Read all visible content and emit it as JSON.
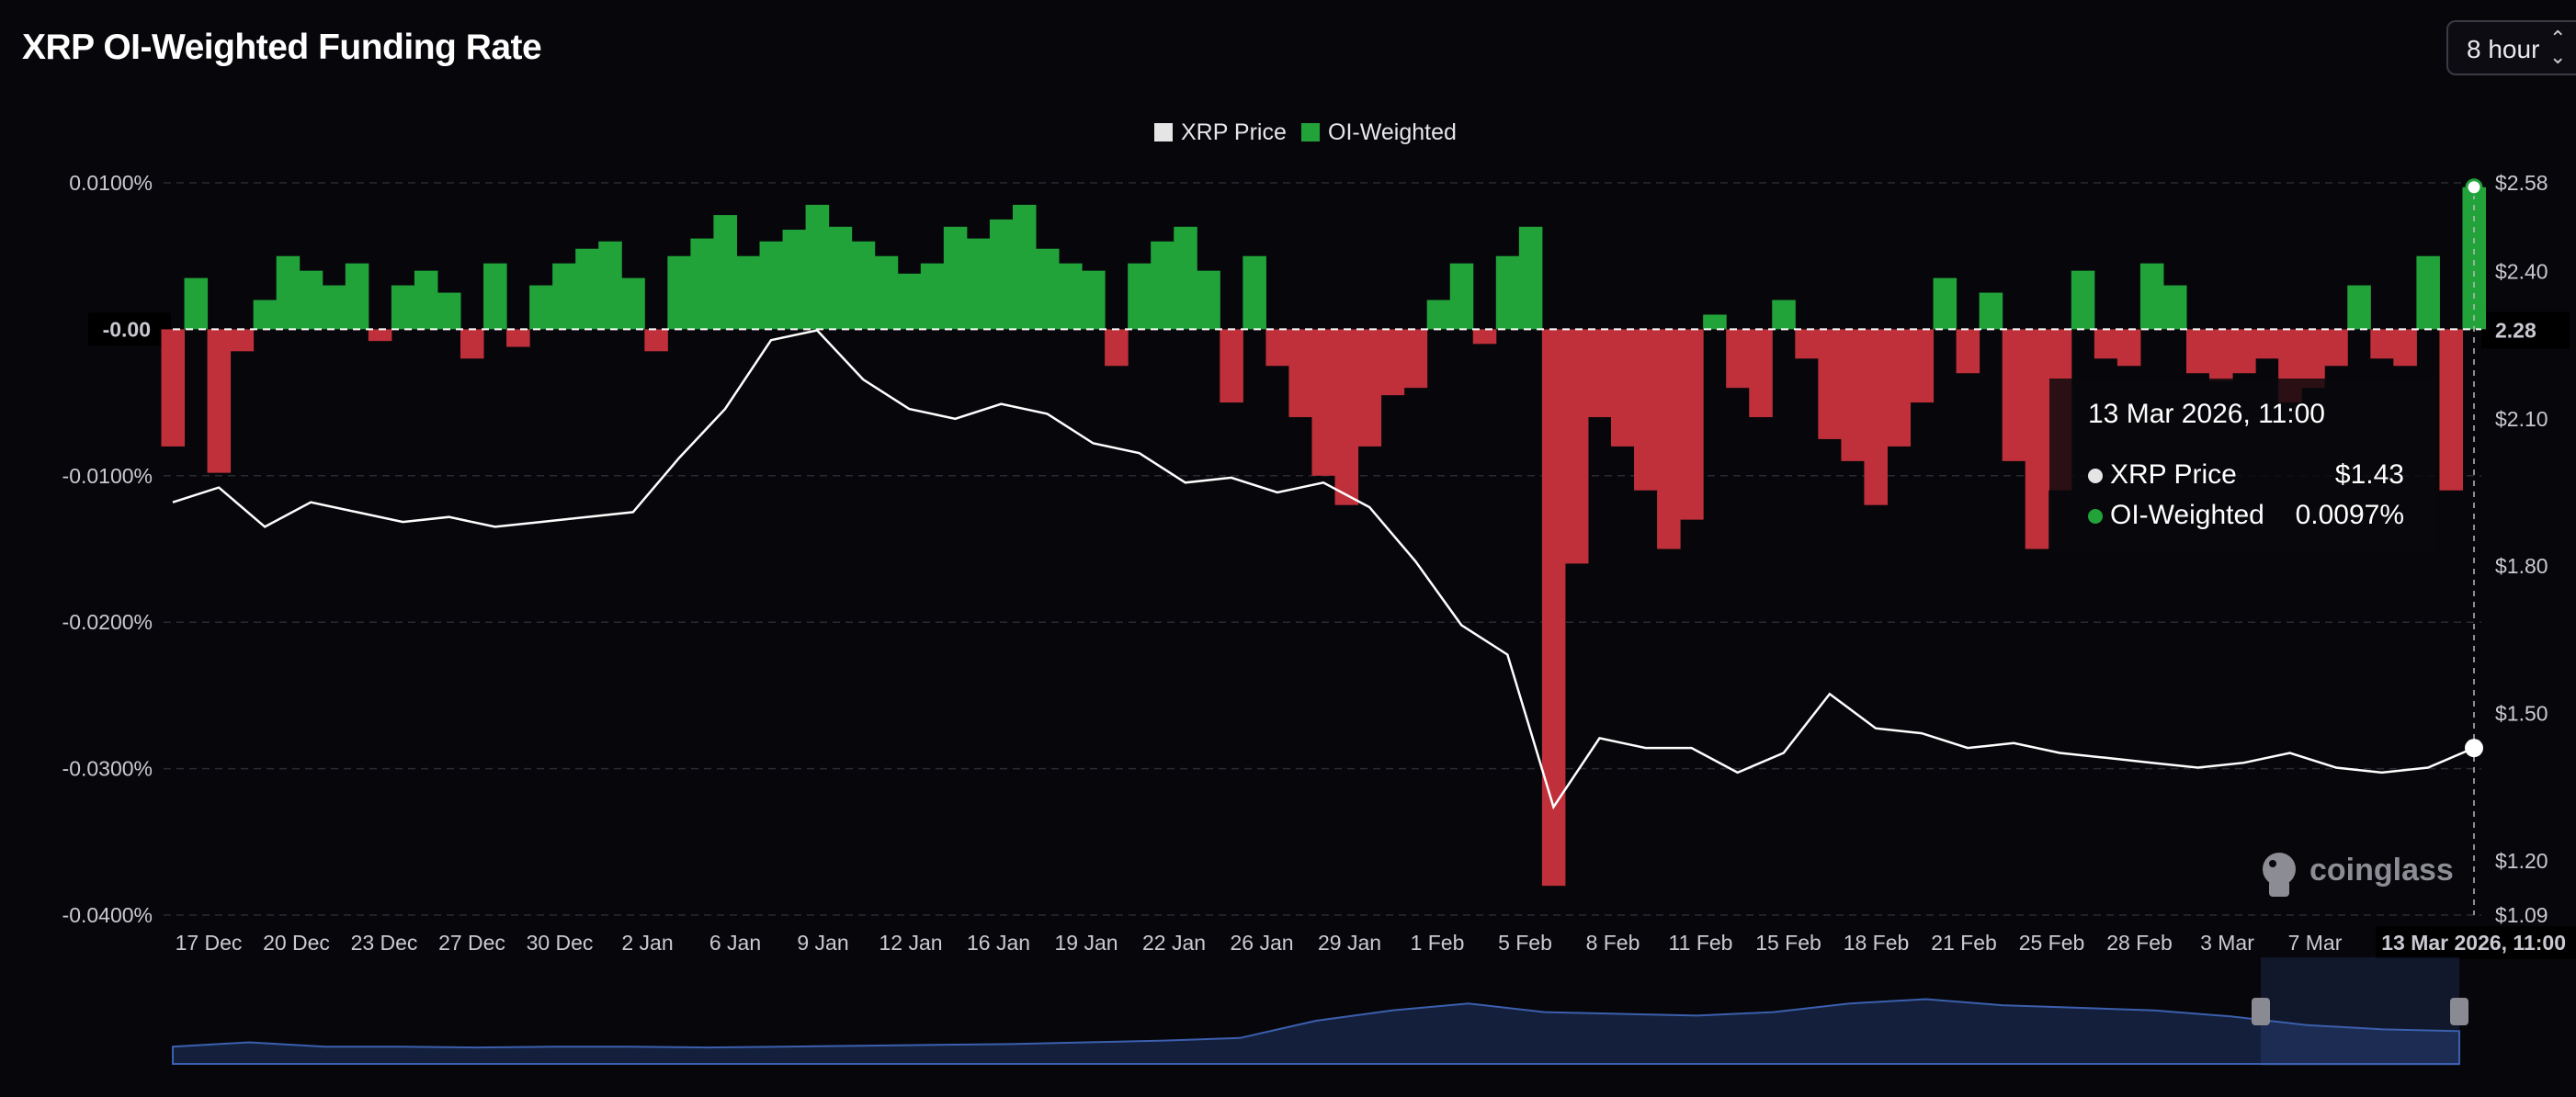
{
  "page": {
    "title": "XRP OI-Weighted Funding Rate"
  },
  "controls": {
    "period_label": "8 hour",
    "period_icon": "chevron-updown-icon"
  },
  "legend": [
    {
      "label": "XRP Price",
      "color": "#e5e5e5"
    },
    {
      "label": "OI-Weighted",
      "color": "#21a33a"
    }
  ],
  "tooltip": {
    "date": "13 Mar 2026, 11:00",
    "rows": [
      {
        "label": "XRP Price",
        "value": "$1.43",
        "color": "#e5e5e5"
      },
      {
        "label": "OI-Weighted",
        "value": "0.0097%",
        "color": "#21a33a"
      }
    ]
  },
  "cursor_labels": {
    "x": "13 Mar 2026, 11:00",
    "y_right": "2.28"
  },
  "watermark": {
    "text": "coinglass"
  },
  "colors": {
    "positive": "#21a33a",
    "negative": "#c0303a",
    "price_line": "#ffffff",
    "background": "#07070b",
    "navigator": "#3b5fae"
  },
  "chart_data": {
    "type": "area",
    "x_ticks": [
      "17 Dec",
      "20 Dec",
      "23 Dec",
      "27 Dec",
      "30 Dec",
      "2 Jan",
      "6 Jan",
      "9 Jan",
      "12 Jan",
      "16 Jan",
      "19 Jan",
      "22 Jan",
      "26 Jan",
      "29 Jan",
      "1 Feb",
      "5 Feb",
      "8 Feb",
      "11 Feb",
      "15 Feb",
      "18 Feb",
      "21 Feb",
      "25 Feb",
      "28 Feb",
      "3 Mar",
      "7 Mar",
      "1"
    ],
    "y_left": {
      "label": "",
      "ticks": [
        "0.0100%",
        "-0.00",
        "-0.0100%",
        "-0.0200%",
        "-0.0300%",
        "-0.0400%"
      ],
      "range": [
        -0.04,
        0.01
      ]
    },
    "y_right": {
      "label": "",
      "ticks": [
        "$2.58",
        "$2.40",
        "2.28",
        "$2.10",
        "$1.80",
        "$1.50",
        "$1.20",
        "$1.09"
      ],
      "range": [
        1.09,
        2.58
      ]
    },
    "x_range_index": [
      0,
      100
    ],
    "series": [
      {
        "name": "OI-Weighted",
        "axis": "left",
        "style": "baseline-area",
        "x": [
          0,
          1,
          2,
          3,
          4,
          5,
          6,
          7,
          8,
          9,
          10,
          11,
          12,
          13,
          14,
          15,
          16,
          17,
          18,
          19,
          20,
          21,
          22,
          23,
          24,
          25,
          26,
          27,
          28,
          29,
          30,
          31,
          32,
          33,
          34,
          35,
          36,
          37,
          38,
          39,
          40,
          41,
          42,
          43,
          44,
          45,
          46,
          47,
          48,
          49,
          50,
          51,
          52,
          53,
          54,
          55,
          56,
          57,
          58,
          59,
          60,
          61,
          62,
          63,
          64,
          65,
          66,
          67,
          68,
          69,
          70,
          71,
          72,
          73,
          74,
          75,
          76,
          77,
          78,
          79,
          80,
          81,
          82,
          83,
          84,
          85,
          86,
          87,
          88,
          89,
          90,
          91,
          92,
          93,
          94,
          95,
          96,
          97,
          98,
          99,
          100
        ],
        "values": [
          -0.008,
          0.0035,
          -0.0098,
          -0.0015,
          0.002,
          0.005,
          0.004,
          0.003,
          0.0045,
          -0.0008,
          0.003,
          0.004,
          0.0025,
          -0.002,
          0.0045,
          -0.0012,
          0.003,
          0.0045,
          0.0055,
          0.006,
          0.0035,
          -0.0015,
          0.005,
          0.0062,
          0.0078,
          0.005,
          0.006,
          0.0068,
          0.0085,
          0.007,
          0.006,
          0.005,
          0.0038,
          0.0045,
          0.007,
          0.0062,
          0.0075,
          0.0085,
          0.0055,
          0.0045,
          0.004,
          -0.0025,
          0.0045,
          0.006,
          0.007,
          0.004,
          -0.005,
          0.005,
          -0.0025,
          -0.006,
          -0.01,
          -0.012,
          -0.008,
          -0.0045,
          -0.004,
          0.002,
          0.0045,
          -0.001,
          0.005,
          0.007,
          -0.038,
          -0.016,
          -0.006,
          -0.008,
          -0.011,
          -0.015,
          -0.013,
          0.001,
          -0.004,
          -0.006,
          0.002,
          -0.002,
          -0.0075,
          -0.009,
          -0.012,
          -0.008,
          -0.005,
          0.0035,
          -0.003,
          0.0025,
          -0.009,
          -0.015,
          -0.011,
          0.004,
          -0.002,
          -0.0025,
          0.0045,
          0.003,
          -0.003,
          -0.0035,
          -0.003,
          -0.002,
          -0.005,
          -0.004,
          -0.0025,
          0.003,
          -0.002,
          -0.0025,
          0.005,
          -0.011,
          0.0097
        ]
      },
      {
        "name": "XRP Price",
        "axis": "right",
        "style": "line",
        "x": [
          0,
          2,
          4,
          6,
          8,
          10,
          12,
          14,
          16,
          18,
          20,
          22,
          24,
          26,
          28,
          30,
          32,
          34,
          36,
          38,
          40,
          42,
          44,
          46,
          48,
          50,
          52,
          54,
          56,
          58,
          60,
          62,
          64,
          66,
          68,
          70,
          72,
          74,
          76,
          78,
          80,
          82,
          84,
          86,
          88,
          90,
          92,
          94,
          96,
          98,
          100
        ],
        "values": [
          1.93,
          1.96,
          1.88,
          1.93,
          1.91,
          1.89,
          1.9,
          1.88,
          1.89,
          1.9,
          1.91,
          2.02,
          2.12,
          2.26,
          2.28,
          2.18,
          2.12,
          2.1,
          2.13,
          2.11,
          2.05,
          2.03,
          1.97,
          1.98,
          1.95,
          1.97,
          1.92,
          1.81,
          1.68,
          1.62,
          1.31,
          1.45,
          1.43,
          1.43,
          1.38,
          1.42,
          1.54,
          1.47,
          1.46,
          1.43,
          1.44,
          1.42,
          1.41,
          1.4,
          1.39,
          1.4,
          1.42,
          1.39,
          1.38,
          1.39,
          1.43
        ]
      }
    ],
    "navigator": {
      "values": [
        0.2,
        0.25,
        0.2,
        0.2,
        0.19,
        0.2,
        0.2,
        0.19,
        0.2,
        0.21,
        0.22,
        0.23,
        0.25,
        0.27,
        0.3,
        0.5,
        0.62,
        0.7,
        0.6,
        0.58,
        0.56,
        0.6,
        0.7,
        0.75,
        0.68,
        0.65,
        0.62,
        0.55,
        0.45,
        0.4,
        0.38
      ]
    }
  }
}
